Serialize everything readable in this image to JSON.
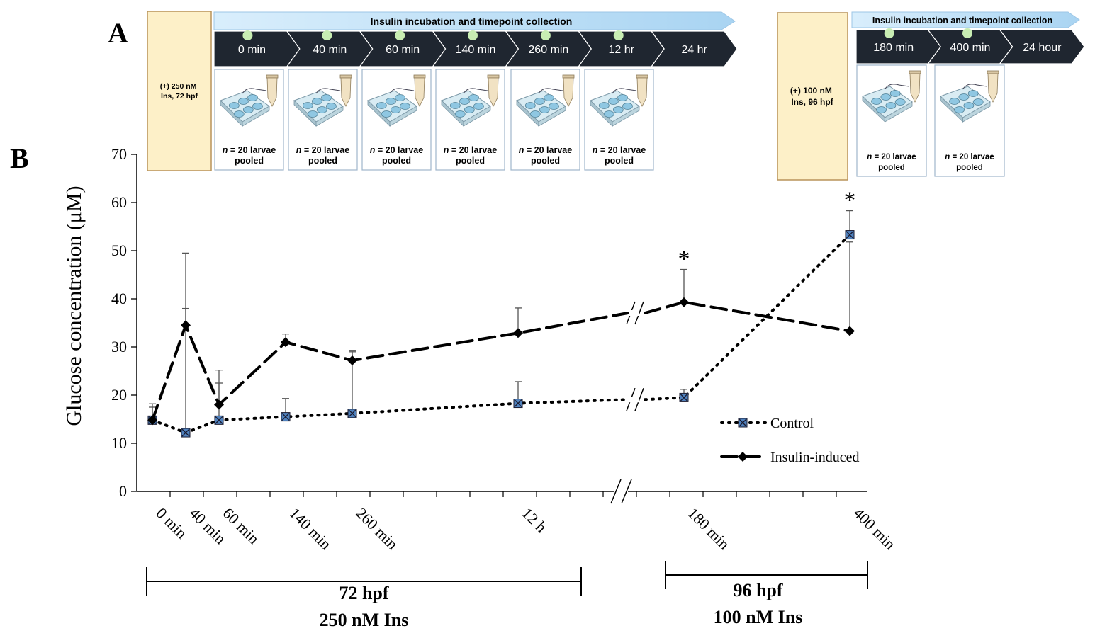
{
  "panel_a": {
    "label": "A",
    "left": {
      "condition": [
        "(+) 250 nM",
        "Ins, 72 hpf"
      ],
      "banner": "Insulin incubation and timepoint collection",
      "timepoints": [
        "0 min",
        "40 min",
        "60 min",
        "140 min",
        "260 min",
        "12 hr",
        "24 hr"
      ],
      "collected_count": 6,
      "sample_label": "n = 20 larvae",
      "sample_n": "n",
      "sample_rest": " = 20 larvae",
      "sample_pooled": "pooled"
    },
    "right": {
      "condition": [
        "(+) 100 nM",
        "Ins, 96 hpf"
      ],
      "banner": "Insulin incubation and timepoint collection",
      "timepoints": [
        "180 min",
        "400 min",
        "24 hour"
      ],
      "collected_count": 2,
      "sample_n": "n",
      "sample_rest": " = 20 larvae",
      "sample_pooled": "pooled"
    },
    "colors": {
      "condition_fill": "#fdf0c8",
      "condition_border": "#b8935a",
      "banner_fill": "#cfe7f8",
      "arrow_fill": "#1f2630",
      "dot": "#c8edb3",
      "box_border": "#9fb6cc"
    }
  },
  "panel_b": {
    "label": "B",
    "chart_data": {
      "type": "line",
      "ylabel": "Glucose concentration (μM)",
      "ylim": [
        0,
        70
      ],
      "yticks": [
        0,
        10,
        20,
        30,
        40,
        50,
        60,
        70
      ],
      "categories": [
        "0 min",
        "40 min",
        "60 min",
        "140 min",
        "260 min",
        "12 h",
        "180 min",
        "400 min"
      ],
      "axis_break": "between 12 h and 180 min",
      "series": [
        {
          "name": "Control",
          "style": "dotted",
          "marker": "square-x",
          "values": [
            14.8,
            12.2,
            14.8,
            15.5,
            16.2,
            18.3,
            19.5,
            53.3
          ],
          "error_upper": [
            18.2,
            38.0,
            22.5,
            19.3,
            29.0,
            22.8,
            21.2,
            58.3
          ]
        },
        {
          "name": "Insulin-induced",
          "style": "dashed",
          "marker": "diamond",
          "values": [
            14.8,
            34.5,
            18.0,
            31.0,
            27.2,
            32.9,
            39.3,
            33.3
          ],
          "error_upper": [
            17.5,
            49.5,
            25.2,
            32.7,
            29.3,
            38.1,
            46.1,
            51.8
          ]
        }
      ],
      "significance": [
        {
          "category": "180 min",
          "symbol": "*"
        },
        {
          "category": "400 min",
          "symbol": "*"
        }
      ],
      "legend": "right",
      "groups": [
        {
          "line1": "72 hpf",
          "line2": "250 nM Ins"
        },
        {
          "line1": "96 hpf",
          "line2": "100 nM Ins"
        }
      ],
      "colors": {
        "line": "#000000",
        "marker_fill": "#4f81bd"
      }
    }
  }
}
